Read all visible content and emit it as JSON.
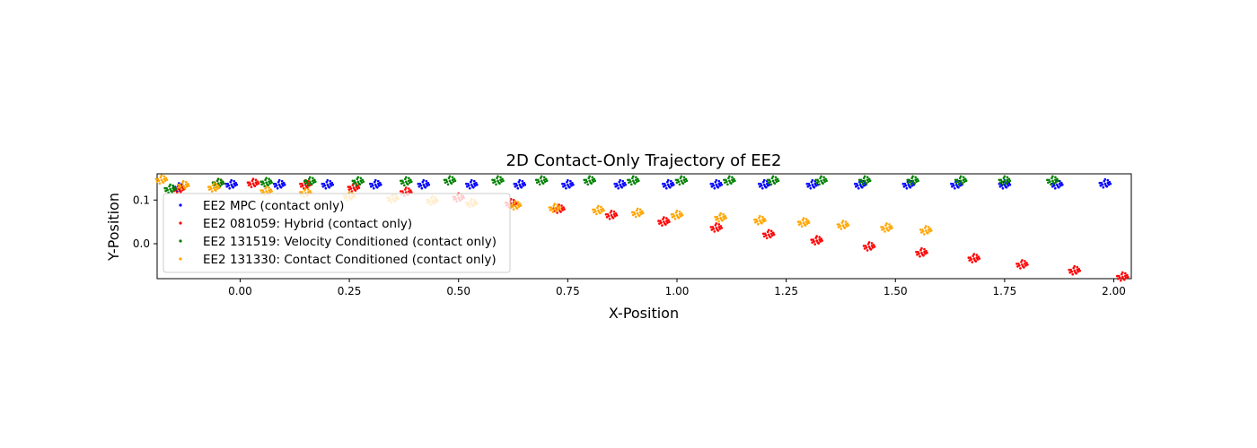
{
  "chart_data": {
    "type": "scatter",
    "title": "2D Contact-Only Trajectory of EE2",
    "xlabel": "X-Position",
    "ylabel": "Y-Position",
    "xlim": [
      -0.19,
      2.04
    ],
    "ylim": [
      -0.08,
      0.16
    ],
    "xticks": [
      0.0,
      0.25,
      0.5,
      0.75,
      1.0,
      1.25,
      1.5,
      1.75,
      2.0
    ],
    "xtick_labels": [
      "0.00",
      "0.25",
      "0.50",
      "0.75",
      "1.00",
      "1.25",
      "1.50",
      "1.75",
      "2.00"
    ],
    "yticks": [
      0.0,
      0.1
    ],
    "ytick_labels": [
      "0.0",
      "0.1"
    ],
    "grid": false,
    "legend_position": "lower-left",
    "series": [
      {
        "name": "EE2 MPC (contact only)",
        "color": "#0000ff",
        "x": [
          -0.14,
          -0.02,
          0.09,
          0.2,
          0.31,
          0.42,
          0.53,
          0.64,
          0.75,
          0.87,
          0.98,
          1.09,
          1.2,
          1.31,
          1.42,
          1.53,
          1.64,
          1.75,
          1.87,
          1.98
        ],
        "y": [
          0.128,
          0.135,
          0.135,
          0.135,
          0.135,
          0.135,
          0.135,
          0.135,
          0.135,
          0.135,
          0.135,
          0.135,
          0.135,
          0.135,
          0.135,
          0.135,
          0.135,
          0.135,
          0.135,
          0.137
        ]
      },
      {
        "name": "EE2 081059: Hybrid (contact only)",
        "color": "#ff0000",
        "x": [
          -0.14,
          -0.05,
          0.03,
          0.15,
          0.26,
          0.38,
          0.5,
          0.62,
          0.73,
          0.85,
          0.97,
          1.09,
          1.21,
          1.32,
          1.44,
          1.56,
          1.68,
          1.79,
          1.91,
          2.02
        ],
        "y": [
          0.125,
          0.138,
          0.138,
          0.135,
          0.128,
          0.118,
          0.105,
          0.092,
          0.079,
          0.065,
          0.05,
          0.036,
          0.021,
          0.007,
          -0.007,
          -0.021,
          -0.034,
          -0.048,
          -0.062,
          -0.076
        ]
      },
      {
        "name": "EE2 131519: Velocity Conditioned (contact only)",
        "color": "#008000",
        "x": [
          -0.16,
          -0.05,
          0.06,
          0.16,
          0.27,
          0.38,
          0.48,
          0.59,
          0.69,
          0.8,
          0.9,
          1.01,
          1.12,
          1.22,
          1.33,
          1.43,
          1.54,
          1.65,
          1.75,
          1.86
        ],
        "y": [
          0.125,
          0.138,
          0.14,
          0.142,
          0.142,
          0.142,
          0.144,
          0.144,
          0.144,
          0.144,
          0.144,
          0.144,
          0.144,
          0.144,
          0.144,
          0.144,
          0.144,
          0.144,
          0.144,
          0.144
        ]
      },
      {
        "name": "EE2 131330: Contact Conditioned (contact only)",
        "color": "#ffa500",
        "x": [
          -0.18,
          -0.13,
          -0.06,
          0.06,
          0.15,
          0.25,
          0.35,
          0.44,
          0.53,
          0.63,
          0.72,
          0.82,
          0.91,
          1.0,
          1.1,
          1.19,
          1.29,
          1.38,
          1.48,
          1.57
        ],
        "y": [
          0.146,
          0.133,
          0.128,
          0.12,
          0.116,
          0.108,
          0.103,
          0.098,
          0.092,
          0.087,
          0.081,
          0.076,
          0.07,
          0.065,
          0.059,
          0.053,
          0.048,
          0.042,
          0.036,
          0.03
        ]
      }
    ]
  }
}
